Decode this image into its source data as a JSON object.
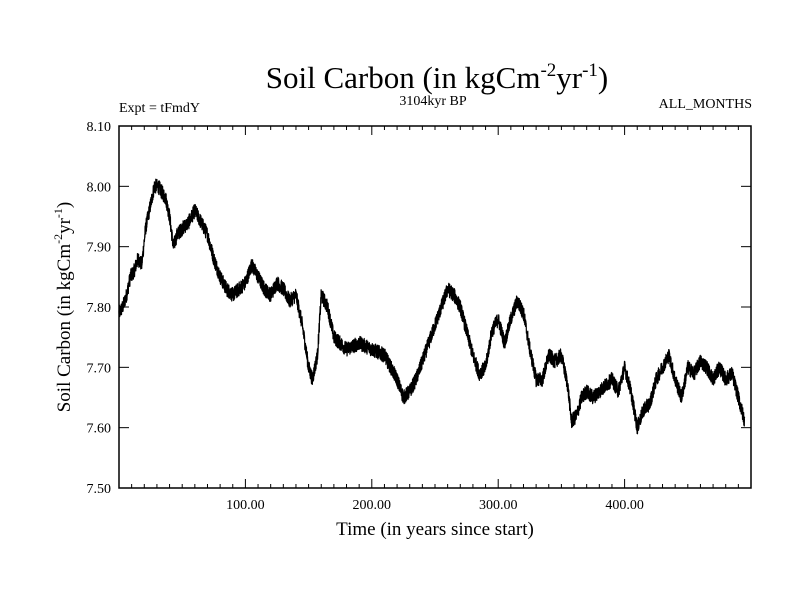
{
  "chart_data": {
    "type": "line",
    "title": "Soil Carbon (in kgCm",
    "title_exp1": "-2",
    "title_mid": "yr",
    "title_exp2": "-1",
    "title_end": ")",
    "subtitle_left": "Expt = tFmdY",
    "subtitle_center": "3104kyr BP",
    "subtitle_right": "ALL_MONTHS",
    "xlabel": "Time (in years since start)",
    "ylabel": "Soil Carbon (in kgCm",
    "ylabel_exp1": "-2",
    "ylabel_mid": "yr",
    "ylabel_exp2": "-1",
    "ylabel_end": ")",
    "xlim": [
      0,
      500
    ],
    "ylim": [
      7.5,
      8.1
    ],
    "x_ticks": [
      100,
      200,
      300,
      400
    ],
    "x_tick_labels": [
      "100.00",
      "200.00",
      "300.00",
      "400.00"
    ],
    "y_ticks": [
      7.5,
      7.6,
      7.7,
      7.8,
      7.9,
      8.0,
      8.1
    ],
    "y_tick_labels": [
      "7.50",
      "7.60",
      "7.70",
      "7.80",
      "7.90",
      "8.00",
      "8.10"
    ],
    "line_color": "#000000",
    "noise_amplitude": 0.012,
    "series": [
      {
        "name": "Soil Carbon",
        "x": [
          0,
          3,
          6,
          9,
          12,
          15,
          18,
          21,
          25,
          28,
          31,
          34,
          37,
          40,
          43,
          46,
          50,
          55,
          60,
          65,
          70,
          75,
          80,
          85,
          90,
          95,
          100,
          105,
          110,
          115,
          120,
          125,
          130,
          135,
          140,
          145,
          150,
          153,
          157,
          160,
          165,
          170,
          175,
          180,
          190,
          200,
          210,
          220,
          225,
          230,
          235,
          240,
          250,
          255,
          260,
          265,
          270,
          275,
          280,
          285,
          290,
          295,
          300,
          305,
          310,
          315,
          320,
          325,
          330,
          335,
          340,
          345,
          350,
          355,
          358,
          362,
          366,
          370,
          375,
          380,
          385,
          390,
          395,
          400,
          405,
          410,
          415,
          420,
          425,
          430,
          435,
          440,
          445,
          450,
          455,
          460,
          465,
          470,
          475,
          480,
          485,
          490,
          495
        ],
        "values": [
          7.79,
          7.8,
          7.82,
          7.85,
          7.86,
          7.88,
          7.87,
          7.93,
          7.97,
          8.0,
          8.0,
          7.99,
          7.98,
          7.95,
          7.9,
          7.92,
          7.93,
          7.94,
          7.96,
          7.94,
          7.92,
          7.88,
          7.85,
          7.83,
          7.82,
          7.83,
          7.84,
          7.87,
          7.85,
          7.83,
          7.82,
          7.84,
          7.83,
          7.81,
          7.82,
          7.77,
          7.7,
          7.68,
          7.72,
          7.82,
          7.8,
          7.75,
          7.74,
          7.73,
          7.74,
          7.73,
          7.72,
          7.68,
          7.65,
          7.66,
          7.68,
          7.71,
          7.77,
          7.8,
          7.83,
          7.82,
          7.8,
          7.76,
          7.72,
          7.69,
          7.7,
          7.76,
          7.78,
          7.74,
          7.78,
          7.81,
          7.79,
          7.73,
          7.68,
          7.68,
          7.72,
          7.71,
          7.72,
          7.67,
          7.61,
          7.62,
          7.65,
          7.66,
          7.65,
          7.66,
          7.67,
          7.68,
          7.66,
          7.7,
          7.66,
          7.6,
          7.63,
          7.64,
          7.68,
          7.7,
          7.72,
          7.68,
          7.65,
          7.7,
          7.69,
          7.71,
          7.7,
          7.68,
          7.7,
          7.68,
          7.69,
          7.65,
          7.61
        ]
      }
    ]
  }
}
